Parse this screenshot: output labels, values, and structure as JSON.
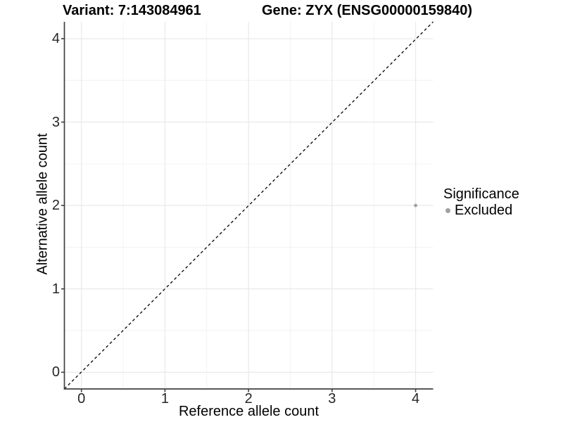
{
  "chart_data": {
    "type": "scatter",
    "title_variant": "Variant: 7:143084961",
    "title_gene": "Gene: ZYX (ENSG00000159840)",
    "xlabel": "Reference allele count",
    "ylabel": "Alternative allele count",
    "x_ticks": [
      0,
      1,
      2,
      3,
      4
    ],
    "y_ticks": [
      0,
      1,
      2,
      3,
      4
    ],
    "xlim": [
      -0.2,
      4.2
    ],
    "ylim": [
      -0.2,
      4.2
    ],
    "minor_grid_step": 0.5,
    "grid": "major and minor, light gray on white",
    "points": [
      {
        "x": 4,
        "y": 2,
        "significance": "Excluded"
      }
    ],
    "identity_line": {
      "equation": "y = x",
      "style": "dashed",
      "color": "#000000"
    },
    "legend": {
      "title": "Significance",
      "position": "right",
      "entries": [
        {
          "label": "Excluded",
          "color": "#a0a0a0"
        }
      ]
    }
  },
  "style": {
    "point_color": "#a0a0a0",
    "grid_major_color": "#e7e7e7",
    "grid_minor_color": "#f2f2f2",
    "axis_line_color": "#404040",
    "tick_label_color": "#262626",
    "background": "#ffffff"
  }
}
